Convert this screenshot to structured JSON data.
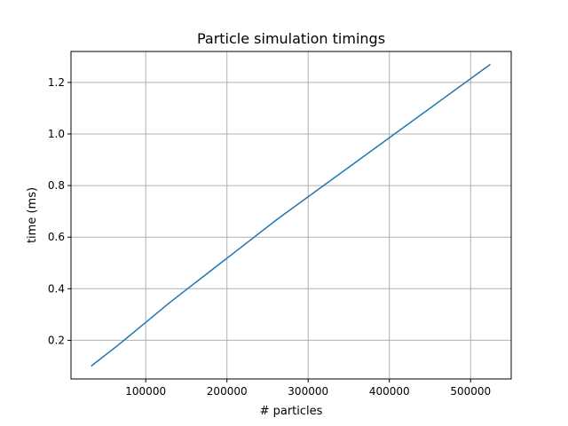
{
  "chart_data": {
    "type": "line",
    "title": "Particle simulation timings",
    "xlabel": "# particles",
    "ylabel": "time (ms)",
    "xlim": [
      8000,
      550000
    ],
    "ylim": [
      0.05,
      1.32
    ],
    "xticks": [
      100000,
      200000,
      300000,
      400000,
      500000
    ],
    "yticks": [
      0.2,
      0.4,
      0.6,
      0.8,
      1.0,
      1.2
    ],
    "xtick_labels": [
      "100000",
      "200000",
      "300000",
      "400000",
      "500000"
    ],
    "ytick_labels": [
      "0.2",
      "0.4",
      "0.6",
      "0.8",
      "1.0",
      "1.2"
    ],
    "grid": true,
    "series": [
      {
        "color": "#1f77b4",
        "x": [
          32768,
          65536,
          131072,
          262144,
          524288
        ],
        "y": [
          0.1,
          0.18,
          0.35,
          0.67,
          1.27
        ]
      }
    ]
  }
}
